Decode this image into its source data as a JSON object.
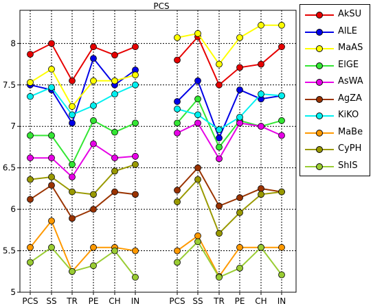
{
  "chart_data": {
    "type": "line",
    "title": "PCS",
    "x_groups": [
      [
        "PCS",
        "SS",
        "TR",
        "PE",
        "CH",
        "IN"
      ],
      [
        "PCS",
        "SS",
        "TR",
        "PE",
        "CH",
        "IN"
      ]
    ],
    "ylim": [
      5,
      8.4
    ],
    "yticks": [
      5,
      5.5,
      6,
      6.5,
      7,
      7.5,
      8
    ],
    "ytick_labels": [
      "5",
      "5.5",
      "6",
      "6.5",
      "7",
      "7.5",
      "8"
    ],
    "grid": true,
    "legend_position": "right",
    "series": [
      {
        "name": "AkSU",
        "color": "#e60000",
        "left": [
          7.87,
          8.0,
          7.55,
          7.96,
          7.86,
          7.96
        ],
        "right": [
          7.8,
          8.08,
          7.5,
          7.71,
          7.75,
          7.96
        ]
      },
      {
        "name": "AlLE",
        "color": "#0000e6",
        "left": [
          7.5,
          7.44,
          7.04,
          7.82,
          7.5,
          7.68
        ],
        "right": [
          7.3,
          7.55,
          6.86,
          7.44,
          7.33,
          7.37
        ]
      },
      {
        "name": "MaAS",
        "color": "#ffff00",
        "left": [
          7.53,
          7.69,
          7.24,
          7.55,
          7.55,
          7.62
        ],
        "right": [
          8.07,
          8.12,
          7.75,
          8.07,
          8.22,
          8.22
        ]
      },
      {
        "name": "ElGE",
        "color": "#33e633",
        "left": [
          6.89,
          6.89,
          6.54,
          7.07,
          6.93,
          7.04
        ],
        "right": [
          7.04,
          7.33,
          6.75,
          7.07,
          7.0,
          7.07
        ]
      },
      {
        "name": "AsWA",
        "color": "#e600e6",
        "left": [
          6.62,
          6.62,
          6.39,
          6.79,
          6.62,
          6.64
        ],
        "right": [
          6.92,
          7.04,
          6.61,
          7.04,
          7.0,
          6.89
        ]
      },
      {
        "name": "AgZA",
        "color": "#9a3300",
        "left": [
          6.12,
          6.29,
          5.89,
          6.0,
          6.21,
          6.18
        ],
        "right": [
          6.23,
          6.5,
          6.04,
          6.14,
          6.25,
          6.21
        ]
      },
      {
        "name": "KiKO",
        "color": "#00f0f0",
        "left": [
          7.36,
          7.47,
          7.14,
          7.25,
          7.39,
          7.5
        ],
        "right": [
          7.21,
          7.14,
          6.96,
          7.11,
          7.39,
          7.37
        ]
      },
      {
        "name": "MaBe",
        "color": "#ff9900",
        "left": [
          5.54,
          5.86,
          5.25,
          5.54,
          5.54,
          5.5
        ],
        "right": [
          5.5,
          5.68,
          5.19,
          5.54,
          5.54,
          5.54
        ]
      },
      {
        "name": "CyPH",
        "color": "#999900",
        "left": [
          6.36,
          6.39,
          6.21,
          6.18,
          6.46,
          6.54
        ],
        "right": [
          6.09,
          6.36,
          5.71,
          5.96,
          6.18,
          6.21
        ]
      },
      {
        "name": "ShIS",
        "color": "#99cc33",
        "left": [
          5.36,
          5.54,
          5.25,
          5.32,
          5.5,
          5.18
        ],
        "right": [
          5.36,
          5.61,
          5.18,
          5.29,
          5.54,
          5.21
        ]
      }
    ]
  }
}
